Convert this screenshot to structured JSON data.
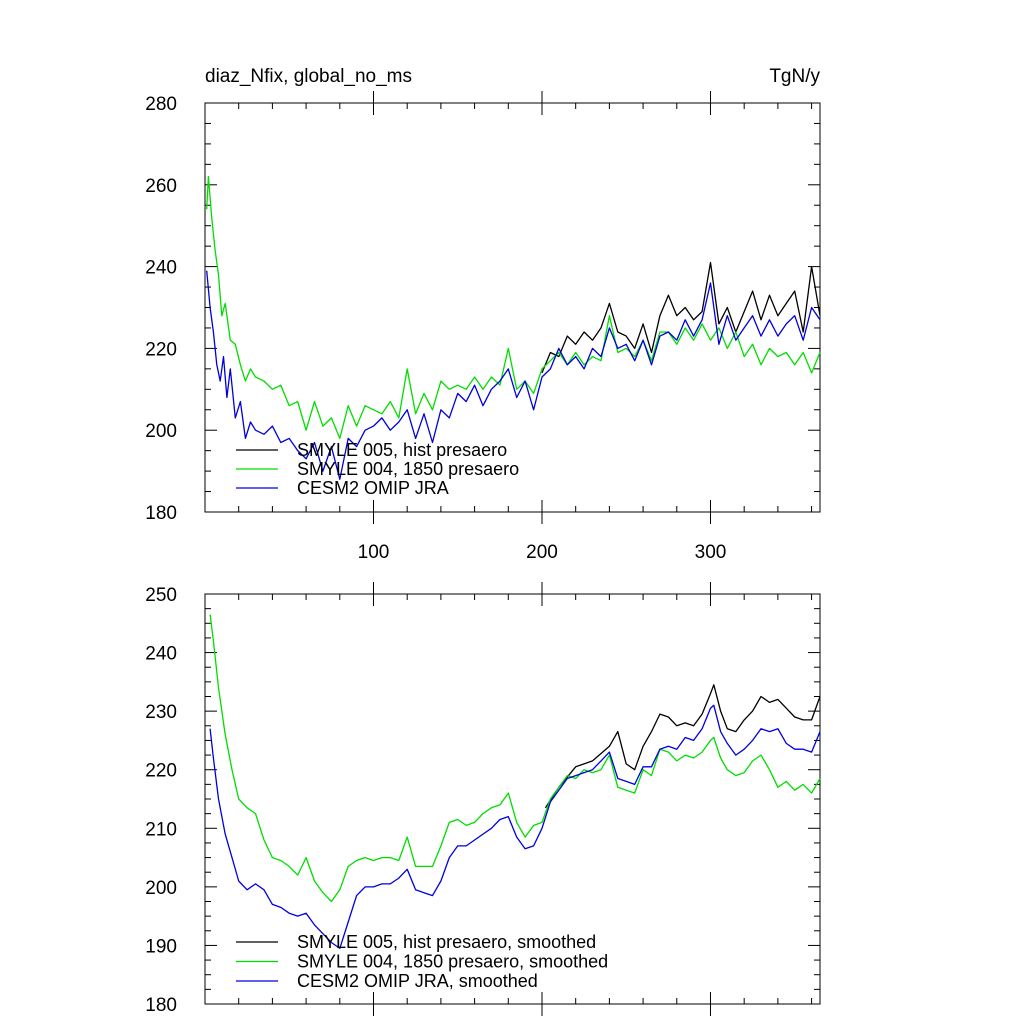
{
  "page": {
    "title_left": "diaz_Nfix, global_no_ms",
    "title_right": "TgN/y"
  },
  "chart_data": [
    {
      "type": "line",
      "title": "diaz_Nfix, global_no_ms",
      "units": "TgN/y",
      "xlim": [
        0,
        365
      ],
      "ylim": [
        180,
        280
      ],
      "x_ticks": [
        100,
        200,
        300
      ],
      "x_tick_labels": [
        "100",
        "200",
        "300"
      ],
      "y_ticks": [
        180,
        200,
        220,
        240,
        260,
        280
      ],
      "y_tick_labels": [
        "180",
        "200",
        "220",
        "240",
        "260",
        "280"
      ],
      "legend_position": "bottom-left",
      "grid": false,
      "series": [
        {
          "name": "SMYLE 005, hist presaero",
          "color": "#000000",
          "x": [
            200,
            205,
            210,
            215,
            220,
            225,
            230,
            235,
            240,
            245,
            250,
            255,
            260,
            265,
            270,
            275,
            280,
            285,
            290,
            295,
            300,
            305,
            310,
            315,
            320,
            325,
            330,
            335,
            340,
            345,
            350,
            355,
            360,
            365
          ],
          "y": [
            214,
            219,
            218,
            223,
            221,
            224,
            222,
            225,
            231,
            224,
            223,
            220,
            226,
            219,
            228,
            233,
            228,
            230,
            227,
            229,
            241,
            226,
            230,
            224,
            229,
            234,
            227,
            233,
            228,
            231,
            234,
            224,
            240,
            228
          ]
        },
        {
          "name": "SMYLE 004, 1850 presaero",
          "color": "#00dd00",
          "x": [
            1,
            2,
            4,
            6,
            8,
            10,
            12,
            15,
            18,
            21,
            24,
            27,
            30,
            35,
            40,
            45,
            50,
            55,
            60,
            65,
            70,
            75,
            80,
            85,
            90,
            95,
            100,
            105,
            110,
            115,
            120,
            125,
            130,
            135,
            140,
            145,
            150,
            155,
            160,
            165,
            170,
            175,
            180,
            185,
            190,
            195,
            200,
            205,
            210,
            215,
            220,
            225,
            230,
            235,
            240,
            245,
            250,
            255,
            260,
            265,
            270,
            275,
            280,
            285,
            290,
            295,
            300,
            305,
            310,
            315,
            320,
            325,
            330,
            335,
            340,
            345,
            350,
            355,
            360,
            365
          ],
          "y": [
            254,
            262,
            252,
            244,
            238,
            228,
            231,
            222,
            221,
            216,
            212,
            215,
            213,
            212,
            210,
            211,
            206,
            207,
            200,
            207,
            201,
            203,
            198,
            206,
            201,
            206,
            205,
            204,
            207,
            203,
            215,
            204,
            209,
            205,
            212,
            210,
            211,
            210,
            213,
            210,
            213,
            211,
            220,
            210,
            212,
            209,
            215,
            217,
            219,
            216,
            219,
            216,
            218,
            217,
            228,
            219,
            220,
            218,
            222,
            217,
            224,
            224,
            221,
            225,
            222,
            226,
            222,
            225,
            220,
            224,
            218,
            221,
            216,
            220,
            218,
            219,
            216,
            219,
            214,
            219
          ]
        },
        {
          "name": "CESM2 OMIP JRA",
          "color": "#0000dd",
          "x": [
            1,
            3,
            5,
            7,
            9,
            11,
            13,
            15,
            18,
            21,
            24,
            27,
            30,
            35,
            40,
            45,
            50,
            55,
            60,
            65,
            70,
            75,
            80,
            85,
            90,
            95,
            100,
            105,
            110,
            115,
            120,
            125,
            130,
            135,
            140,
            145,
            150,
            155,
            160,
            165,
            170,
            175,
            180,
            185,
            190,
            195,
            200,
            205,
            210,
            215,
            220,
            225,
            230,
            235,
            240,
            245,
            250,
            255,
            260,
            265,
            270,
            275,
            280,
            285,
            290,
            295,
            300,
            305,
            310,
            315,
            320,
            325,
            330,
            335,
            340,
            345,
            350,
            355,
            360,
            365
          ],
          "y": [
            239,
            230,
            224,
            216,
            212,
            218,
            208,
            215,
            203,
            207,
            198,
            202,
            200,
            199,
            201,
            197,
            198,
            195,
            193,
            197,
            190,
            196,
            188,
            198,
            196,
            200,
            201,
            203,
            200,
            202,
            205,
            198,
            204,
            197,
            205,
            203,
            209,
            207,
            211,
            206,
            210,
            212,
            215,
            208,
            212,
            205,
            213,
            215,
            220,
            216,
            218,
            215,
            220,
            218,
            225,
            220,
            221,
            217,
            222,
            216,
            223,
            224,
            222,
            227,
            223,
            227,
            236,
            221,
            228,
            222,
            225,
            228,
            223,
            227,
            223,
            226,
            228,
            222,
            230,
            227
          ]
        }
      ]
    },
    {
      "type": "line",
      "xlim": [
        0,
        365
      ],
      "ylim": [
        180,
        250
      ],
      "x_ticks": [
        100,
        200,
        300
      ],
      "y_ticks": [
        180,
        190,
        200,
        210,
        220,
        230,
        240,
        250
      ],
      "y_tick_labels": [
        "180",
        "190",
        "200",
        "210",
        "220",
        "230",
        "240",
        "250"
      ],
      "legend_position": "bottom-left",
      "grid": false,
      "series": [
        {
          "name": "SMYLE 005, hist presaero, smoothed",
          "color": "#000000",
          "x": [
            202,
            210,
            220,
            230,
            240,
            245,
            250,
            255,
            260,
            265,
            270,
            275,
            280,
            285,
            290,
            295,
            300,
            302,
            306,
            310,
            315,
            320,
            325,
            330,
            335,
            340,
            345,
            350,
            355,
            360,
            365
          ],
          "y": [
            213.5,
            217,
            220.5,
            221.5,
            224,
            226.5,
            221,
            220,
            224,
            226.5,
            229.5,
            229,
            227.5,
            228,
            227.5,
            229.5,
            233,
            234.5,
            230,
            227,
            226.5,
            228.5,
            230,
            232.5,
            231.5,
            232,
            230.5,
            229,
            228.5,
            228.5,
            232.5
          ]
        },
        {
          "name": "SMYLE 004, 1850 presaero, smoothed",
          "color": "#00dd00",
          "x": [
            3,
            5,
            8,
            12,
            16,
            20,
            25,
            30,
            35,
            40,
            45,
            50,
            55,
            60,
            65,
            70,
            75,
            80,
            85,
            90,
            95,
            100,
            105,
            110,
            115,
            120,
            125,
            130,
            135,
            140,
            145,
            150,
            155,
            160,
            165,
            170,
            175,
            180,
            185,
            190,
            195,
            200,
            205,
            210,
            215,
            220,
            225,
            230,
            235,
            240,
            245,
            250,
            255,
            260,
            265,
            270,
            275,
            280,
            285,
            290,
            295,
            300,
            302,
            306,
            310,
            315,
            320,
            325,
            330,
            335,
            340,
            345,
            350,
            355,
            360,
            365
          ],
          "y": [
            246.5,
            242,
            234,
            226,
            220,
            215,
            213.5,
            212.5,
            208,
            205,
            204.5,
            203.5,
            202,
            205,
            201,
            199,
            197.5,
            199.5,
            203.5,
            204.5,
            205,
            204.5,
            205,
            205,
            204.5,
            208.5,
            203.5,
            203.5,
            203.5,
            207,
            211,
            211.5,
            210.5,
            211,
            212.5,
            213.5,
            214,
            216,
            211,
            208.5,
            210.5,
            211,
            215,
            217,
            219,
            218.5,
            220,
            219.5,
            220,
            222.5,
            217,
            216.5,
            216,
            220,
            219,
            223.5,
            223,
            221.5,
            222.5,
            222,
            223,
            225,
            225.5,
            222,
            220,
            219,
            219.5,
            221.5,
            222.5,
            220,
            217,
            218,
            216.5,
            217.5,
            216,
            218.5
          ]
        },
        {
          "name": "CESM2 OMIP JRA, smoothed",
          "color": "#0000dd",
          "x": [
            3,
            5,
            8,
            12,
            16,
            20,
            25,
            30,
            35,
            40,
            45,
            50,
            55,
            60,
            65,
            70,
            75,
            80,
            85,
            90,
            95,
            100,
            105,
            110,
            115,
            120,
            125,
            130,
            135,
            140,
            145,
            150,
            155,
            160,
            165,
            170,
            175,
            180,
            185,
            190,
            195,
            200,
            205,
            210,
            215,
            220,
            225,
            230,
            235,
            240,
            245,
            250,
            255,
            260,
            265,
            270,
            275,
            280,
            285,
            290,
            295,
            300,
            302,
            306,
            310,
            315,
            320,
            325,
            330,
            335,
            340,
            345,
            350,
            355,
            360,
            365
          ],
          "y": [
            227,
            222,
            215,
            209,
            205,
            201,
            199.5,
            200.5,
            199.5,
            197,
            196.5,
            195.5,
            195,
            195.5,
            193.5,
            192,
            190.5,
            189.5,
            194,
            198.5,
            200,
            200,
            200.5,
            200.5,
            201.5,
            203,
            199.5,
            199,
            198.5,
            201,
            205,
            207,
            207,
            208,
            209,
            210,
            211.5,
            212,
            208.5,
            206.5,
            207,
            210,
            214.5,
            216.5,
            218.5,
            219,
            219.5,
            220,
            221.5,
            223,
            218.5,
            218,
            217.5,
            220.5,
            220.5,
            223.5,
            224,
            223.5,
            225.5,
            225,
            227,
            230.5,
            231,
            226.5,
            224.5,
            222.5,
            223.5,
            225,
            227,
            226.5,
            227,
            224.5,
            223.5,
            223.5,
            223,
            226.5
          ]
        }
      ]
    }
  ]
}
